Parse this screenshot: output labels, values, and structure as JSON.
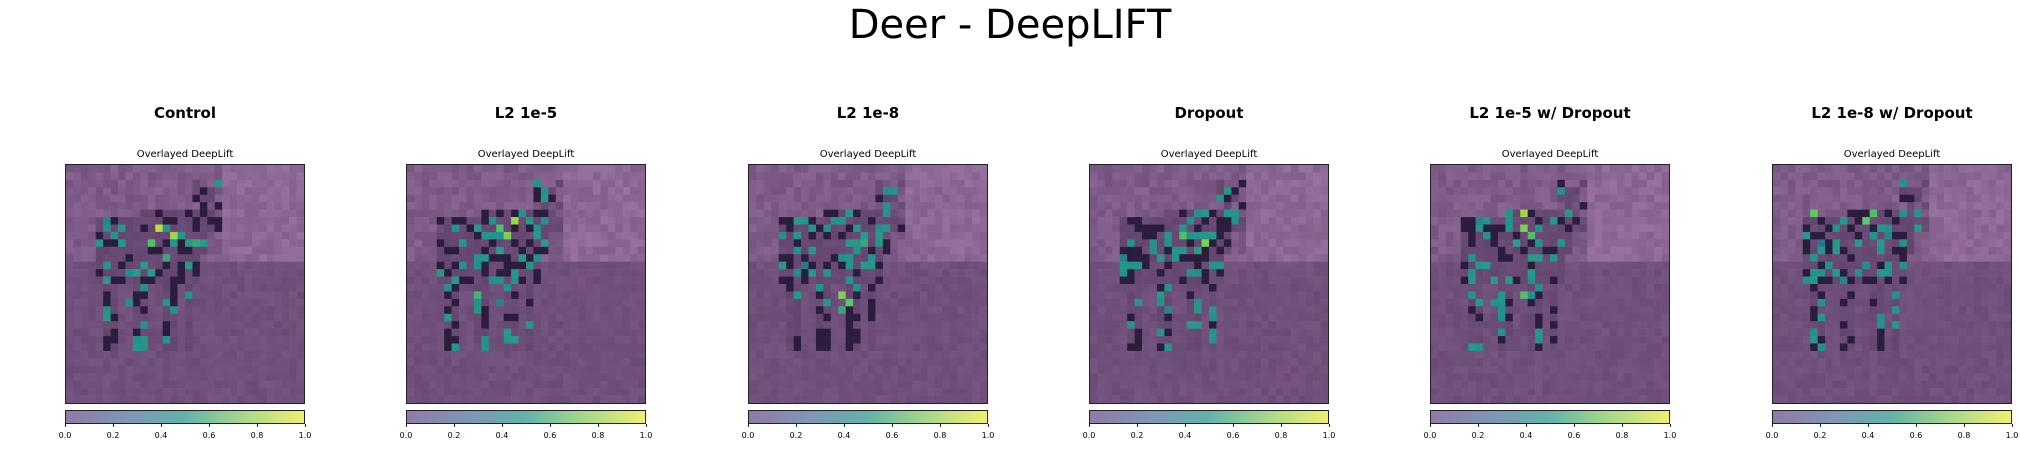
{
  "title": "Deer - DeepLIFT",
  "colors": {
    "low": "#440154",
    "mid": "#21918c",
    "high": "#fde725",
    "background": "#8c6f92"
  },
  "chart_data": {
    "type": "heatmap",
    "colorbar": {
      "range": [
        0,
        1
      ],
      "ticks": [
        "0.0",
        "0.2",
        "0.4",
        "0.6",
        "0.8",
        "1.0"
      ],
      "colormap": "viridis"
    },
    "panels": [
      {
        "title": "Control",
        "subtitle": "Overlayed DeepLift",
        "hotspots": [
          {
            "r": 8,
            "c": 12,
            "v": 0.9
          },
          {
            "r": 9,
            "c": 14,
            "v": 0.85
          },
          {
            "r": 10,
            "c": 11,
            "v": 0.7
          },
          {
            "r": 12,
            "c": 13,
            "v": 0.6
          },
          {
            "r": 14,
            "c": 9,
            "v": 0.55
          },
          {
            "r": 18,
            "c": 8,
            "v": 0.5
          },
          {
            "r": 10,
            "c": 17,
            "v": 0.6
          },
          {
            "r": 7,
            "c": 5,
            "v": 0.45
          }
        ]
      },
      {
        "title": "L2 1e-5",
        "subtitle": "Overlayed DeepLift",
        "hotspots": [
          {
            "r": 7,
            "c": 14,
            "v": 0.85
          },
          {
            "r": 8,
            "c": 12,
            "v": 0.7
          },
          {
            "r": 9,
            "c": 13,
            "v": 0.8
          },
          {
            "r": 11,
            "c": 12,
            "v": 0.55
          },
          {
            "r": 16,
            "c": 5,
            "v": 0.5
          },
          {
            "r": 17,
            "c": 9,
            "v": 0.65
          },
          {
            "r": 18,
            "c": 12,
            "v": 0.45
          }
        ]
      },
      {
        "title": "L2 1e-8",
        "subtitle": "Overlayed DeepLift",
        "hotspots": [
          {
            "r": 10,
            "c": 15,
            "v": 0.6
          },
          {
            "r": 11,
            "c": 14,
            "v": 0.5
          },
          {
            "r": 17,
            "c": 12,
            "v": 0.8
          },
          {
            "r": 18,
            "c": 13,
            "v": 0.75
          },
          {
            "r": 19,
            "c": 12,
            "v": 0.6
          },
          {
            "r": 13,
            "c": 7,
            "v": 0.4
          }
        ]
      },
      {
        "title": "Dropout",
        "subtitle": "Overlayed DeepLift",
        "hotspots": [
          {
            "r": 9,
            "c": 12,
            "v": 0.7
          },
          {
            "r": 10,
            "c": 15,
            "v": 0.8
          },
          {
            "r": 11,
            "c": 14,
            "v": 0.55
          },
          {
            "r": 12,
            "c": 4,
            "v": 0.45
          },
          {
            "r": 19,
            "c": 10,
            "v": 0.45
          }
        ]
      },
      {
        "title": "L2 1e-5 w/ Dropout",
        "subtitle": "Overlayed DeepLift",
        "hotspots": [
          {
            "r": 6,
            "c": 12,
            "v": 0.85
          },
          {
            "r": 8,
            "c": 12,
            "v": 0.8
          },
          {
            "r": 9,
            "c": 13,
            "v": 0.7
          },
          {
            "r": 10,
            "c": 11,
            "v": 0.55
          },
          {
            "r": 17,
            "c": 12,
            "v": 0.7
          },
          {
            "r": 18,
            "c": 8,
            "v": 0.5
          },
          {
            "r": 7,
            "c": 6,
            "v": 0.45
          }
        ]
      },
      {
        "title": "L2 1e-8 w/ Dropout",
        "subtitle": "Overlayed DeepLift",
        "hotspots": [
          {
            "r": 6,
            "c": 5,
            "v": 0.75
          },
          {
            "r": 6,
            "c": 13,
            "v": 0.7
          },
          {
            "r": 7,
            "c": 12,
            "v": 0.75
          },
          {
            "r": 9,
            "c": 15,
            "v": 0.45
          },
          {
            "r": 10,
            "c": 6,
            "v": 0.4
          },
          {
            "r": 15,
            "c": 9,
            "v": 0.45
          }
        ]
      }
    ]
  }
}
